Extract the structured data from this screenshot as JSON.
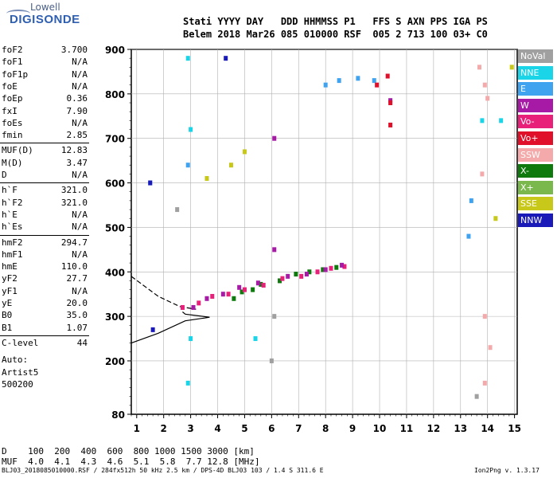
{
  "logo": {
    "top": "Lowell",
    "bottom": "DIGISONDE"
  },
  "header": {
    "line1": "Stati YYYY DAY   DDD HHMMSS P1   FFS S AXN PPS IGA PS",
    "line2": "Belem 2018 Mar26 085 010000 RSF  005 2 713 100 03+ C0"
  },
  "params": [
    {
      "k": "foF2",
      "v": "3.700"
    },
    {
      "k": "foF1",
      "v": "N/A"
    },
    {
      "k": "foF1p",
      "v": "N/A"
    },
    {
      "k": "foE",
      "v": "N/A"
    },
    {
      "k": "foEp",
      "v": "0.36"
    },
    {
      "k": "fxI",
      "v": "7.90"
    },
    {
      "k": "foEs",
      "v": "N/A"
    },
    {
      "k": "fmin",
      "v": "2.85"
    },
    {
      "k": "MUF(D)",
      "v": "12.83"
    },
    {
      "k": "M(D)",
      "v": "3.47"
    },
    {
      "k": "D",
      "v": "N/A"
    },
    {
      "k": "h`F",
      "v": "321.0"
    },
    {
      "k": "h`F2",
      "v": "321.0"
    },
    {
      "k": "h`E",
      "v": "N/A"
    },
    {
      "k": "h`Es",
      "v": "N/A"
    },
    {
      "k": "hmF2",
      "v": "294.7"
    },
    {
      "k": "hmF1",
      "v": "N/A"
    },
    {
      "k": "hmE",
      "v": "110.0"
    },
    {
      "k": "yF2",
      "v": "27.7"
    },
    {
      "k": "yF1",
      "v": "N/A"
    },
    {
      "k": "yE",
      "v": "20.0"
    },
    {
      "k": "B0",
      "v": "35.0"
    },
    {
      "k": "B1",
      "v": "1.07"
    },
    {
      "k": "C-level",
      "v": "44"
    }
  ],
  "auto": {
    "line1": "Auto:",
    "line2": "Artist5",
    "line3": "500200"
  },
  "legend": [
    {
      "label": "NoVal",
      "color": "#a0a0a0"
    },
    {
      "label": "NNE",
      "color": "#1ad4e8"
    },
    {
      "label": "E",
      "color": "#3fa3ef"
    },
    {
      "label": "W",
      "color": "#a61aa6"
    },
    {
      "label": "Vo-",
      "color": "#e8207a"
    },
    {
      "label": "Vo+",
      "color": "#e0102a"
    },
    {
      "label": "SSW",
      "color": "#f4aaaa"
    },
    {
      "label": "X-",
      "color": "#0e7a0e"
    },
    {
      "label": "X+",
      "color": "#7ab84e"
    },
    {
      "label": "SSE",
      "color": "#c8c81a"
    },
    {
      "label": "NNW",
      "color": "#1a1ab8"
    }
  ],
  "chart_data": {
    "type": "scatter",
    "title": "",
    "xlabel": "",
    "ylabel": "",
    "xlim": [
      0.8,
      15.1
    ],
    "ylim": [
      80,
      900
    ],
    "x_ticks": [
      1,
      2,
      3,
      4,
      5,
      6,
      7,
      8,
      9,
      10,
      11,
      12,
      13,
      14,
      15
    ],
    "y_ticks": [
      80,
      200,
      300,
      400,
      500,
      600,
      700,
      800,
      900
    ],
    "grid": true,
    "legend_placement": "right",
    "series": [
      {
        "name": "X-",
        "points": [
          [
            4.6,
            340
          ],
          [
            4.9,
            355
          ],
          [
            5.3,
            360
          ],
          [
            5.6,
            372
          ],
          [
            6.3,
            380
          ],
          [
            6.9,
            395
          ],
          [
            7.4,
            400
          ],
          [
            7.9,
            405
          ],
          [
            8.4,
            410
          ]
        ]
      },
      {
        "name": "Vo-",
        "points": [
          [
            2.7,
            320
          ],
          [
            3.3,
            330
          ],
          [
            3.8,
            345
          ],
          [
            4.4,
            350
          ],
          [
            5.0,
            360
          ],
          [
            5.7,
            370
          ],
          [
            6.4,
            385
          ],
          [
            7.1,
            390
          ],
          [
            7.7,
            400
          ],
          [
            8.2,
            408
          ],
          [
            8.7,
            412
          ]
        ]
      },
      {
        "name": "W",
        "points": [
          [
            3.1,
            320
          ],
          [
            3.6,
            340
          ],
          [
            4.2,
            350
          ],
          [
            4.8,
            365
          ],
          [
            5.5,
            375
          ],
          [
            6.6,
            390
          ],
          [
            7.3,
            395
          ],
          [
            8.0,
            405
          ],
          [
            8.6,
            415
          ],
          [
            10.4,
            785
          ],
          [
            6.1,
            700
          ],
          [
            6.1,
            450
          ]
        ]
      },
      {
        "name": "E",
        "points": [
          [
            1.5,
            600
          ],
          [
            2.9,
            640
          ],
          [
            8.0,
            820
          ],
          [
            8.5,
            830
          ],
          [
            9.2,
            835
          ],
          [
            9.8,
            830
          ],
          [
            13.3,
            480
          ],
          [
            13.4,
            560
          ]
        ]
      },
      {
        "name": "NNE",
        "points": [
          [
            2.9,
            880
          ],
          [
            3.0,
            720
          ],
          [
            3.0,
            250
          ],
          [
            2.9,
            150
          ],
          [
            5.4,
            250
          ],
          [
            13.8,
            740
          ],
          [
            14.5,
            740
          ]
        ]
      },
      {
        "name": "SSW",
        "points": [
          [
            13.7,
            860
          ],
          [
            13.9,
            820
          ],
          [
            14.0,
            790
          ],
          [
            13.8,
            620
          ],
          [
            13.9,
            300
          ],
          [
            14.1,
            230
          ],
          [
            13.9,
            150
          ]
        ]
      },
      {
        "name": "SSE",
        "points": [
          [
            4.5,
            640
          ],
          [
            5.0,
            670
          ],
          [
            3.6,
            610
          ],
          [
            14.9,
            860
          ],
          [
            14.3,
            520
          ]
        ]
      },
      {
        "name": "Vo+",
        "points": [
          [
            10.3,
            840
          ],
          [
            10.4,
            780
          ],
          [
            10.4,
            730
          ],
          [
            9.9,
            820
          ]
        ]
      },
      {
        "name": "NNW",
        "points": [
          [
            1.6,
            270
          ],
          [
            1.5,
            600
          ],
          [
            4.3,
            880
          ]
        ]
      },
      {
        "name": "NoVal",
        "points": [
          [
            2.5,
            540
          ],
          [
            6.1,
            300
          ],
          [
            6.0,
            200
          ],
          [
            13.6,
            120
          ]
        ]
      }
    ],
    "trace_lines": [
      {
        "style": "dashed",
        "points": [
          [
            0.8,
            390
          ],
          [
            1.8,
            345
          ],
          [
            2.6,
            322
          ],
          [
            3.2,
            316
          ]
        ]
      },
      {
        "style": "solid",
        "points": [
          [
            0.8,
            240
          ],
          [
            1.8,
            262
          ],
          [
            2.8,
            290
          ],
          [
            3.7,
            298
          ],
          [
            2.8,
            305
          ],
          [
            2.7,
            310
          ]
        ]
      }
    ]
  },
  "bottom": {
    "d_row": "D    100  200  400  600  800 1000 1500 3000 [km]",
    "muf_row": "MUF  4.0  4.1  4.3  4.6  5.1  5.8  7.7 12.8 [MHz]"
  },
  "footer": {
    "left": "BLJ03_2018085010000.RSF / 284fx512h 50 kHz 2.5 km / DPS-4D BLJ03 103 / 1.4 S 311.6 E",
    "right": "Ion2Png v. 1.3.17"
  }
}
